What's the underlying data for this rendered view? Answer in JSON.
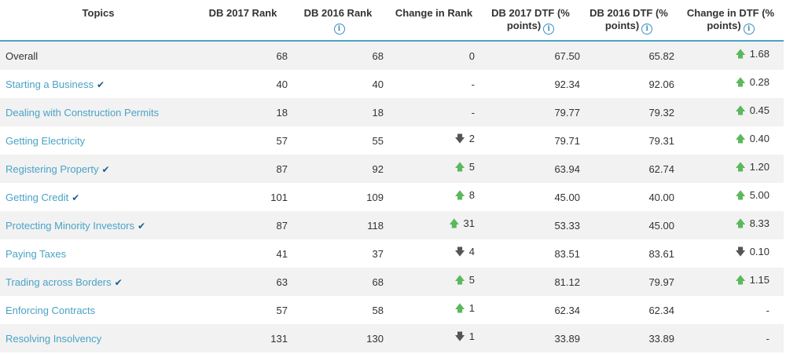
{
  "headers": {
    "topics": "Topics",
    "db2017_rank": "DB 2017 Rank",
    "db2016_rank": "DB 2016 Rank",
    "change_rank": "Change in Rank",
    "db2017_dtf": "DB 2017 DTF (% points)",
    "db2016_dtf": "DB 2016 DTF (% points)",
    "change_dtf": "Change in DTF (% points)"
  },
  "colors": {
    "link": "#4aa3c6",
    "up": "#5cb85c",
    "down": "#555555",
    "header_rule": "#4aa3c6"
  },
  "rows": [
    {
      "topic": "Overall",
      "check": false,
      "link": false,
      "r2017": "68",
      "r2016": "68",
      "rank_dir": "",
      "rank_change": "0",
      "d2017": "67.50",
      "d2016": "65.82",
      "dtf_dir": "up",
      "dtf_change": "1.68"
    },
    {
      "topic": "Starting a Business",
      "check": true,
      "link": true,
      "r2017": "40",
      "r2016": "40",
      "rank_dir": "",
      "rank_change": "-",
      "d2017": "92.34",
      "d2016": "92.06",
      "dtf_dir": "up",
      "dtf_change": "0.28"
    },
    {
      "topic": "Dealing with Construction Permits",
      "check": false,
      "link": true,
      "r2017": "18",
      "r2016": "18",
      "rank_dir": "",
      "rank_change": "-",
      "d2017": "79.77",
      "d2016": "79.32",
      "dtf_dir": "up",
      "dtf_change": "0.45"
    },
    {
      "topic": "Getting Electricity",
      "check": false,
      "link": true,
      "r2017": "57",
      "r2016": "55",
      "rank_dir": "down",
      "rank_change": "2",
      "d2017": "79.71",
      "d2016": "79.31",
      "dtf_dir": "up",
      "dtf_change": "0.40"
    },
    {
      "topic": "Registering Property",
      "check": true,
      "link": true,
      "r2017": "87",
      "r2016": "92",
      "rank_dir": "up",
      "rank_change": "5",
      "d2017": "63.94",
      "d2016": "62.74",
      "dtf_dir": "up",
      "dtf_change": "1.20"
    },
    {
      "topic": "Getting Credit",
      "check": true,
      "link": true,
      "r2017": "101",
      "r2016": "109",
      "rank_dir": "up",
      "rank_change": "8",
      "d2017": "45.00",
      "d2016": "40.00",
      "dtf_dir": "up",
      "dtf_change": "5.00"
    },
    {
      "topic": "Protecting Minority Investors",
      "check": true,
      "link": true,
      "r2017": "87",
      "r2016": "118",
      "rank_dir": "up",
      "rank_change": "31",
      "d2017": "53.33",
      "d2016": "45.00",
      "dtf_dir": "up",
      "dtf_change": "8.33"
    },
    {
      "topic": "Paying Taxes",
      "check": false,
      "link": true,
      "r2017": "41",
      "r2016": "37",
      "rank_dir": "down",
      "rank_change": "4",
      "d2017": "83.51",
      "d2016": "83.61",
      "dtf_dir": "down",
      "dtf_change": "0.10"
    },
    {
      "topic": "Trading across Borders",
      "check": true,
      "link": true,
      "r2017": "63",
      "r2016": "68",
      "rank_dir": "up",
      "rank_change": "5",
      "d2017": "81.12",
      "d2016": "79.97",
      "dtf_dir": "up",
      "dtf_change": "1.15"
    },
    {
      "topic": "Enforcing Contracts",
      "check": false,
      "link": true,
      "r2017": "57",
      "r2016": "58",
      "rank_dir": "up",
      "rank_change": "1",
      "d2017": "62.34",
      "d2016": "62.34",
      "dtf_dir": "",
      "dtf_change": "-"
    },
    {
      "topic": "Resolving Insolvency",
      "check": false,
      "link": true,
      "r2017": "131",
      "r2016": "130",
      "rank_dir": "down",
      "rank_change": "1",
      "d2017": "33.89",
      "d2016": "33.89",
      "dtf_dir": "",
      "dtf_change": "-"
    }
  ]
}
